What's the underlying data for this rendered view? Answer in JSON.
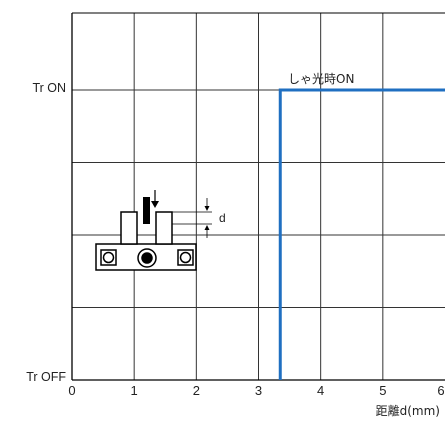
{
  "chart_data": {
    "type": "line",
    "title": "",
    "xlabel": "距離d(mm)",
    "ylabel": "",
    "xlim": [
      0,
      6
    ],
    "x_ticks": [
      0,
      1,
      2,
      3,
      4,
      5,
      6
    ],
    "y_states": [
      "Tr OFF",
      "Tr ON"
    ],
    "grid": true,
    "series": [
      {
        "points": [
          {
            "x": 3.35,
            "y": "Tr OFF"
          },
          {
            "x": 3.35,
            "y": "Tr ON"
          },
          {
            "x": 6,
            "y": "Tr ON"
          }
        ],
        "color": "#1f6fc1"
      }
    ],
    "annotation": "しゃ光時ON",
    "inset_label": "d"
  },
  "colors": {
    "line": "#1f6fc1",
    "grid": "#333333",
    "axis": "#000000"
  }
}
